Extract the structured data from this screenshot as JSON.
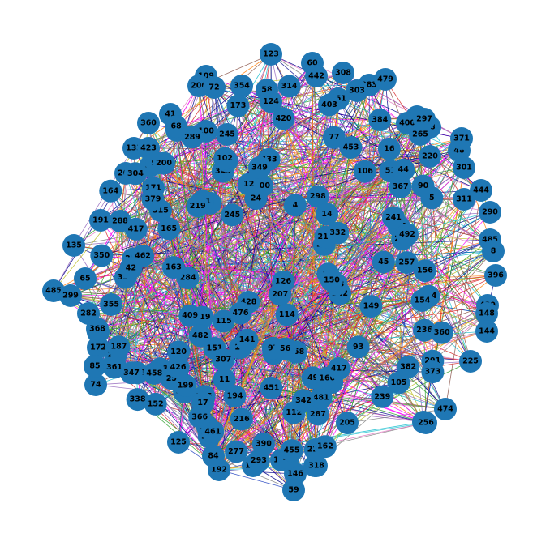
{
  "graph": {
    "node_color": "#1f77b4",
    "edge_colors": [
      "#1f3fbf",
      "#2ca02c",
      "#d62728",
      "#9467bd",
      "#e377c2",
      "#17becf",
      "#bcbd22",
      "#7f7f7f",
      "#ff7f0e",
      "#8c564b",
      "#00008b",
      "#ff00ff"
    ],
    "visible_node_labels": [
      "123",
      "60",
      "109",
      "442",
      "308",
      "383",
      "479",
      "206",
      "72",
      "354",
      "58",
      "303",
      "116",
      "98",
      "41",
      "400",
      "265",
      "360",
      "440",
      "100",
      "245",
      "133",
      "423",
      "220",
      "202",
      "301",
      "290",
      "191",
      "288",
      "135",
      "485",
      "485",
      "8",
      "396",
      "430",
      "148",
      "144",
      "225",
      "474",
      "493",
      "256",
      "146",
      "59",
      "340",
      "318",
      "192",
      "84",
      "125",
      "180",
      "129",
      "79",
      "172",
      "142",
      "74",
      "85",
      "65",
      "299",
      "282",
      "368",
      "311",
      "444",
      "48",
      "371",
      "297",
      "173",
      "165",
      "171",
      "293",
      "120",
      "194",
      "4",
      "441",
      "319",
      "342",
      "394",
      "245",
      "203",
      "90",
      "384",
      "170",
      "298",
      "382",
      "409",
      "182",
      "433",
      "335",
      "443",
      "115",
      "105",
      "247",
      "50",
      "95",
      "122",
      "54",
      "187",
      "291",
      "390",
      "77",
      "213",
      "304",
      "373",
      "315",
      "149",
      "400",
      "164",
      "257",
      "261",
      "287",
      "17",
      "23",
      "45",
      "151",
      "152",
      "51",
      "1",
      "93",
      "200",
      "44",
      "284",
      "21",
      "163",
      "358",
      "289",
      "228",
      "403",
      "420",
      "141",
      "11",
      "378",
      "338",
      "208",
      "361",
      "106",
      "367",
      "414",
      "461",
      "481",
      "162",
      "307",
      "350",
      "366",
      "379",
      "16",
      "25",
      "345",
      "241",
      "236",
      "38",
      "255",
      "5",
      "14",
      "68",
      "126",
      "360",
      "355",
      "97",
      "112",
      "156",
      "199",
      "455",
      "462",
      "124",
      "239",
      "49",
      "56",
      "12",
      "428",
      "223",
      "314",
      "453",
      "458",
      "476",
      "216",
      "207",
      "205",
      "426",
      "482",
      "168",
      "160",
      "154",
      "24",
      "114",
      "181",
      "347",
      "42",
      "492",
      "150",
      "102",
      "173",
      "219",
      "349",
      "451",
      "332",
      "417",
      "342",
      "277",
      "417"
    ]
  }
}
